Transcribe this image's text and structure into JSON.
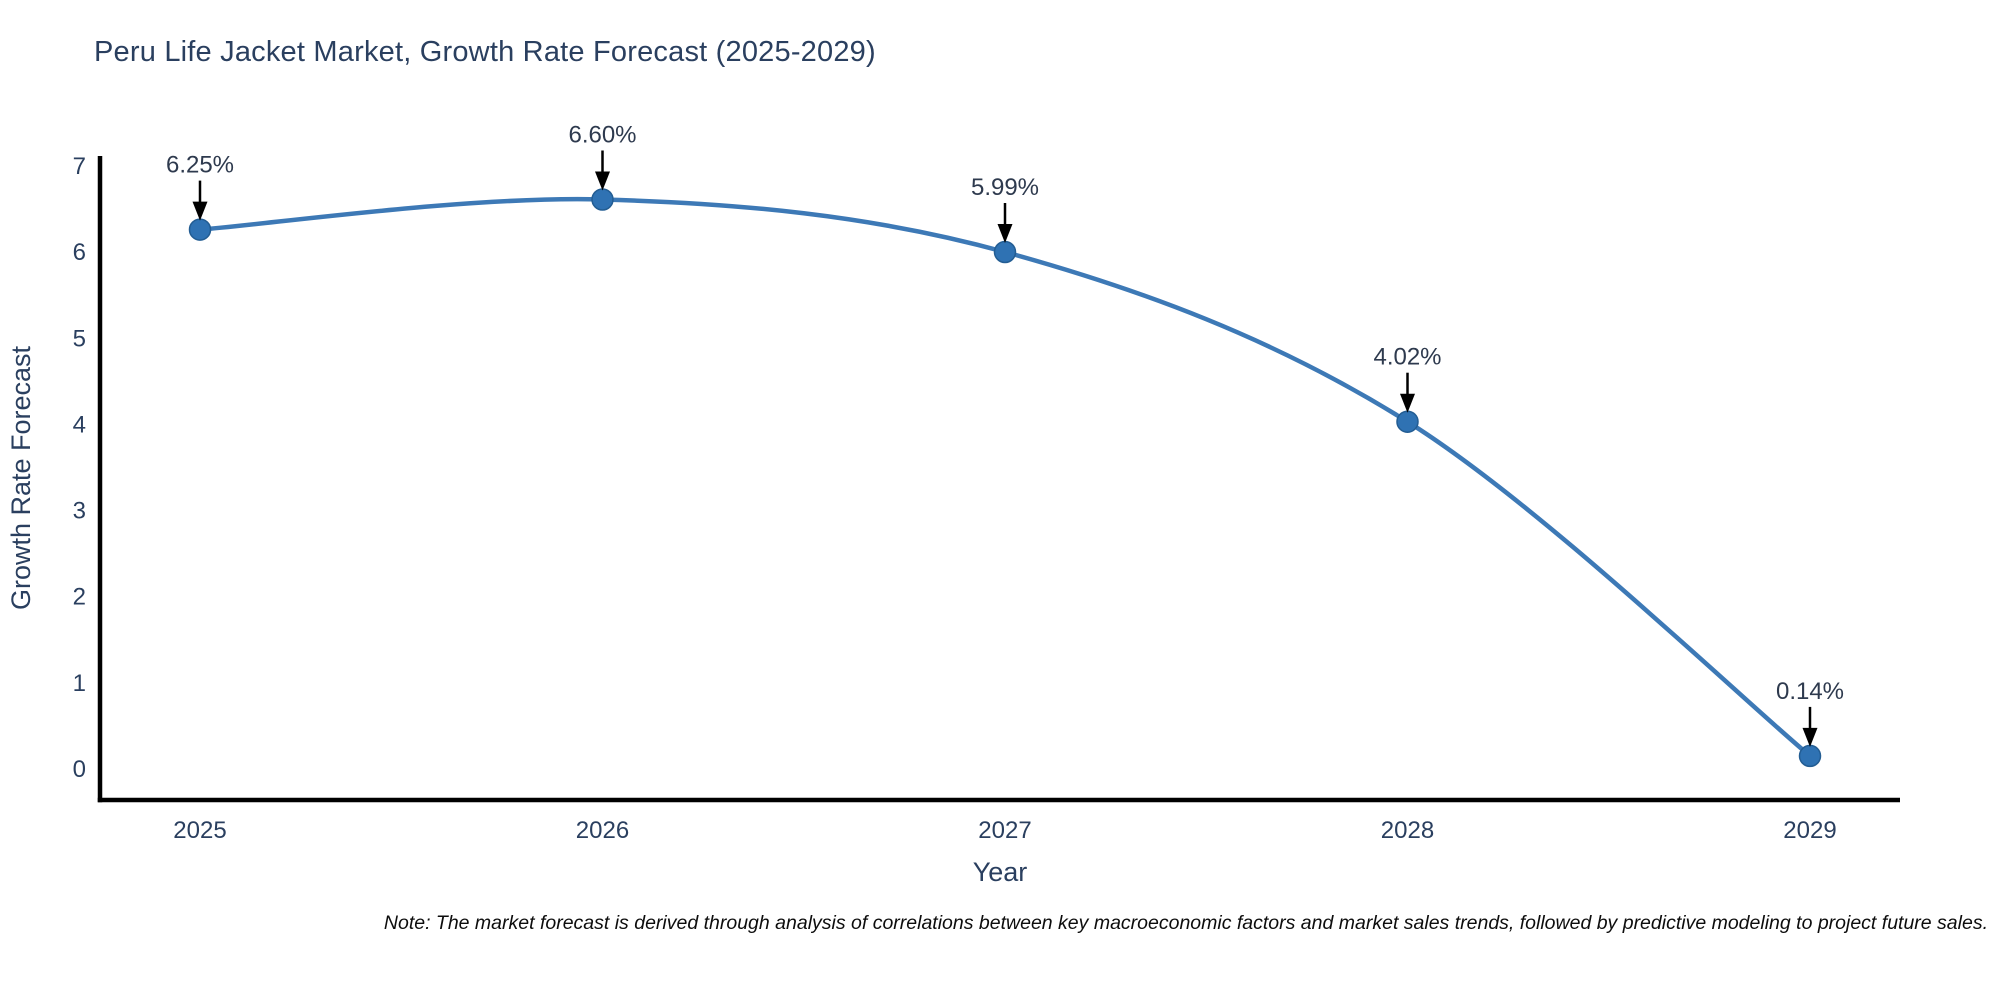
{
  "title": "Peru Life Jacket Market, Growth Rate Forecast (2025-2029)",
  "note": "Note: The market forecast is derived through analysis of correlations between key macroeconomic factors and market sales trends, followed by predictive modeling to project future sales.",
  "chart_data": {
    "type": "line",
    "line_shape": "spline",
    "x": [
      "2025",
      "2026",
      "2027",
      "2028",
      "2029"
    ],
    "values": [
      6.25,
      6.6,
      5.99,
      4.02,
      0.14
    ],
    "point_labels": [
      "6.25%",
      "6.60%",
      "5.99%",
      "4.02%",
      "0.14%"
    ],
    "title": "Peru Life Jacket Market, Growth Rate Forecast (2025-2029)",
    "xlabel": "Year",
    "ylabel": "Growth Rate Forecast",
    "ylim": [
      0,
      7
    ],
    "yticks": [
      0,
      1,
      2,
      3,
      4,
      5,
      6,
      7
    ],
    "grid": false,
    "legend_position": "none",
    "colors": {
      "line": "#3d79b6",
      "marker_fill": "#2f72b3",
      "marker_edge": "#235d93",
      "axis_spine": "#000000",
      "text": "#2a3f5f",
      "annotation_text": "#2e3a4e",
      "arrow": "#000000",
      "background": "#ffffff"
    }
  }
}
